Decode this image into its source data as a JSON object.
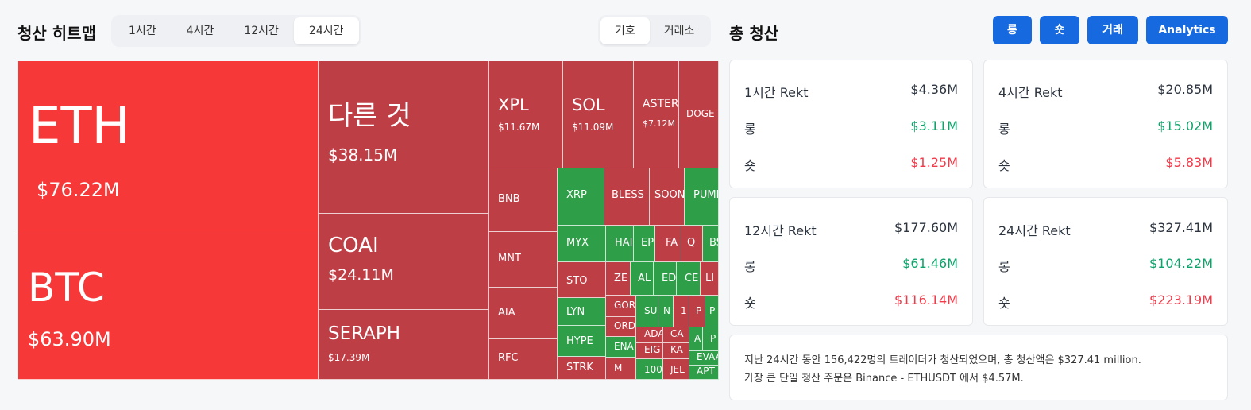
{
  "heatmap": {
    "title": "청산 히트맵",
    "timeframes": [
      "1시간",
      "4시간",
      "12시간",
      "24시간"
    ],
    "active_timeframe": 3,
    "modes": [
      "기호",
      "거래소"
    ],
    "active_mode": 0
  },
  "colors": {
    "red_bright": "#f73838",
    "red_dark": "#be3e46",
    "green": "#2f9e48",
    "accent": "#1769e0",
    "long": "#0fa36b",
    "short": "#ef3b4a"
  },
  "tiles": [
    {
      "symbol": "ETH",
      "value": "$76.22M",
      "color": "red_bright"
    },
    {
      "symbol": "BTC",
      "value": "$63.90M",
      "color": "red_bright"
    },
    {
      "symbol": "다른 것",
      "value": "$38.15M",
      "color": "red_dark"
    },
    {
      "symbol": "COAI",
      "value": "$24.11M",
      "color": "red_dark"
    },
    {
      "symbol": "SERAPH",
      "value": "$17.39M",
      "color": "red_dark"
    },
    {
      "symbol": "XPL",
      "value": "$11.67M",
      "color": "red_dark"
    },
    {
      "symbol": "SOL",
      "value": "$11.09M",
      "color": "red_dark"
    },
    {
      "symbol": "ASTER",
      "value": "$7.12M",
      "color": "red_dark"
    },
    {
      "symbol": "DOGE",
      "value": "",
      "color": "red_dark"
    },
    {
      "symbol": "BNB",
      "value": "",
      "color": "red_dark"
    },
    {
      "symbol": "MNT",
      "value": "",
      "color": "red_dark"
    },
    {
      "symbol": "AIA",
      "value": "",
      "color": "red_dark"
    },
    {
      "symbol": "RFC",
      "value": "",
      "color": "red_dark"
    },
    {
      "symbol": "XRP",
      "value": "",
      "color": "green"
    },
    {
      "symbol": "BLESS",
      "value": "",
      "color": "red_dark"
    },
    {
      "symbol": "SOON",
      "value": "",
      "color": "red_dark"
    },
    {
      "symbol": "PUMP",
      "value": "",
      "color": "green"
    },
    {
      "symbol": "MYX",
      "value": "",
      "color": "green"
    },
    {
      "symbol": "HAI",
      "value": "",
      "color": "green"
    },
    {
      "symbol": "EP",
      "value": "",
      "color": "green"
    },
    {
      "symbol": "FA",
      "value": "",
      "color": "red_dark"
    },
    {
      "symbol": "Q",
      "value": "",
      "color": "red_dark"
    },
    {
      "symbol": "BS",
      "value": "",
      "color": "green"
    },
    {
      "symbol": "STO",
      "value": "",
      "color": "red_dark"
    },
    {
      "symbol": "ZE",
      "value": "",
      "color": "red_dark"
    },
    {
      "symbol": "AL",
      "value": "",
      "color": "green"
    },
    {
      "symbol": "ED",
      "value": "",
      "color": "green"
    },
    {
      "symbol": "CE",
      "value": "",
      "color": "green"
    },
    {
      "symbol": "LI",
      "value": "",
      "color": "red_dark"
    },
    {
      "symbol": "LYN",
      "value": "",
      "color": "green"
    },
    {
      "symbol": "GOR",
      "value": "",
      "color": "red_dark"
    },
    {
      "symbol": "SU",
      "value": "",
      "color": "green"
    },
    {
      "symbol": "N",
      "value": "",
      "color": "green"
    },
    {
      "symbol": "1",
      "value": "",
      "color": "red_dark"
    },
    {
      "symbol": "P",
      "value": "",
      "color": "red_dark"
    },
    {
      "symbol": "P",
      "value": "",
      "color": "green"
    },
    {
      "symbol": "HYPE",
      "value": "",
      "color": "green"
    },
    {
      "symbol": "ORD",
      "value": "",
      "color": "red_dark"
    },
    {
      "symbol": "ADA",
      "value": "",
      "color": "red_dark"
    },
    {
      "symbol": "CA",
      "value": "",
      "color": "red_dark"
    },
    {
      "symbol": "A",
      "value": "",
      "color": "green"
    },
    {
      "symbol": "P",
      "value": "",
      "color": "green"
    },
    {
      "symbol": "ENA",
      "value": "",
      "color": "green"
    },
    {
      "symbol": "EIG",
      "value": "",
      "color": "red_dark"
    },
    {
      "symbol": "KA",
      "value": "",
      "color": "red_dark"
    },
    {
      "symbol": "EVAA",
      "value": "",
      "color": "green"
    },
    {
      "symbol": "STRK",
      "value": "",
      "color": "red_dark"
    },
    {
      "symbol": "M",
      "value": "",
      "color": "red_dark"
    },
    {
      "symbol": "100",
      "value": "",
      "color": "green"
    },
    {
      "symbol": "JEL",
      "value": "",
      "color": "red_dark"
    },
    {
      "symbol": "APT",
      "value": "",
      "color": "green"
    }
  ],
  "totals": {
    "title": "총 청산",
    "buttons": [
      "롱",
      "숏",
      "거래",
      "Analytics"
    ],
    "cards": [
      {
        "label": "1시간 Rekt",
        "total": "$4.36M",
        "long_label": "롱",
        "long": "$3.11M",
        "short_label": "숏",
        "short": "$1.25M"
      },
      {
        "label": "4시간 Rekt",
        "total": "$20.85M",
        "long_label": "롱",
        "long": "$15.02M",
        "short_label": "숏",
        "short": "$5.83M"
      },
      {
        "label": "12시간 Rekt",
        "total": "$177.60M",
        "long_label": "롱",
        "long": "$61.46M",
        "short_label": "숏",
        "short": "$116.14M"
      },
      {
        "label": "24시간 Rekt",
        "total": "$327.41M",
        "long_label": "롱",
        "long": "$104.22M",
        "short_label": "숏",
        "short": "$223.19M"
      }
    ],
    "summary_line1": "지난 24시간 동안 156,422명의 트레이더가 청산되었으며, 총 청산액은 $327.41 million.",
    "summary_line2": "가장 큰 단일 청산 주문은 Binance - ETHUSDT 에서 $4.57M."
  }
}
